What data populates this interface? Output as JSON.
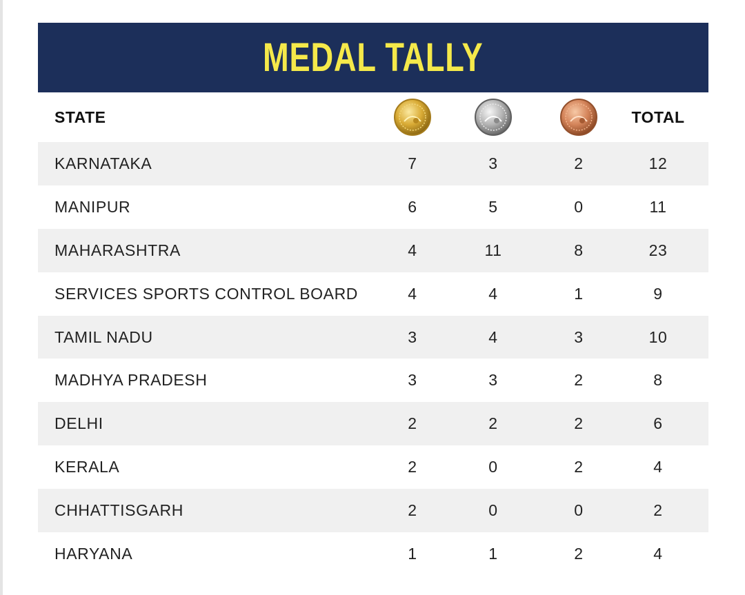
{
  "title": "MEDAL TALLY",
  "headers": {
    "state": "STATE",
    "total": "TOTAL"
  },
  "medal_icons": [
    {
      "name": "gold-medal-icon",
      "color": "#d4a52a"
    },
    {
      "name": "silver-medal-icon",
      "color": "#a8a8a8"
    },
    {
      "name": "bronze-medal-icon",
      "color": "#d98a5c"
    }
  ],
  "colors": {
    "banner": "#1c2f5a",
    "title": "#f5e94a",
    "row_shade": "#f0f0f0"
  },
  "rows": [
    {
      "state": "KARNATAKA",
      "gold": "7",
      "silver": "3",
      "bronze": "2",
      "total": "12"
    },
    {
      "state": "MANIPUR",
      "gold": "6",
      "silver": "5",
      "bronze": "0",
      "total": "11"
    },
    {
      "state": "MAHARASHTRA",
      "gold": "4",
      "silver": "11",
      "bronze": "8",
      "total": "23"
    },
    {
      "state": "SERVICES SPORTS CONTROL BOARD",
      "gold": "4",
      "silver": "4",
      "bronze": "1",
      "total": "9"
    },
    {
      "state": "TAMIL NADU",
      "gold": "3",
      "silver": "4",
      "bronze": "3",
      "total": "10"
    },
    {
      "state": "MADHYA PRADESH",
      "gold": "3",
      "silver": "3",
      "bronze": "2",
      "total": "8"
    },
    {
      "state": "DELHI",
      "gold": "2",
      "silver": "2",
      "bronze": "2",
      "total": "6"
    },
    {
      "state": "KERALA",
      "gold": "2",
      "silver": "0",
      "bronze": "2",
      "total": "4"
    },
    {
      "state": "CHHATTISGARH",
      "gold": "2",
      "silver": "0",
      "bronze": "0",
      "total": "2"
    },
    {
      "state": "HARYANA",
      "gold": "1",
      "silver": "1",
      "bronze": "2",
      "total": "4"
    }
  ]
}
